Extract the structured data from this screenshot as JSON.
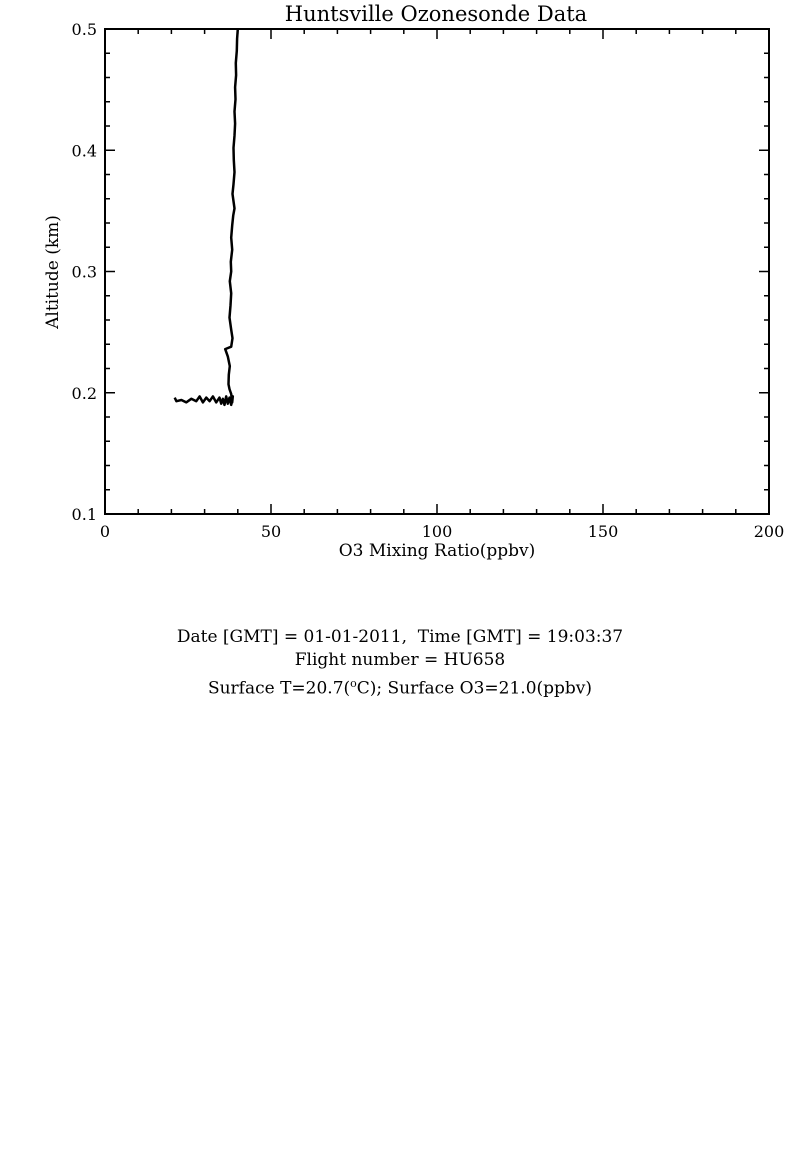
{
  "chart_data": {
    "type": "line",
    "title": "Huntsville Ozonesonde Data",
    "xlabel": "O3 Mixing Ratio(ppbv)",
    "ylabel": "Altitude (km)",
    "xlim": [
      0,
      200
    ],
    "ylim": [
      0.1,
      0.5
    ],
    "x_ticks": [
      "0",
      "50",
      "100",
      "150",
      "200"
    ],
    "y_ticks": [
      "0.1",
      "0.2",
      "0.3",
      "0.4",
      "0.5"
    ],
    "grid": false,
    "series": [
      {
        "color": "#000000",
        "points": [
          [
            21.0,
            0.196
          ],
          [
            21.5,
            0.193
          ],
          [
            23.0,
            0.194
          ],
          [
            24.5,
            0.192
          ],
          [
            26.0,
            0.195
          ],
          [
            27.5,
            0.193
          ],
          [
            28.5,
            0.197
          ],
          [
            29.5,
            0.192
          ],
          [
            30.5,
            0.196
          ],
          [
            31.5,
            0.193
          ],
          [
            32.5,
            0.197
          ],
          [
            33.5,
            0.192
          ],
          [
            34.5,
            0.196
          ],
          [
            35.0,
            0.191
          ],
          [
            35.5,
            0.195
          ],
          [
            36.0,
            0.19
          ],
          [
            36.5,
            0.197
          ],
          [
            37.0,
            0.191
          ],
          [
            37.5,
            0.196
          ],
          [
            38.0,
            0.19
          ],
          [
            38.5,
            0.197
          ],
          [
            38.3,
            0.192
          ],
          [
            38.0,
            0.199
          ],
          [
            37.5,
            0.203
          ],
          [
            37.2,
            0.207
          ],
          [
            37.3,
            0.215
          ],
          [
            37.6,
            0.222
          ],
          [
            37.0,
            0.23
          ],
          [
            36.2,
            0.236
          ],
          [
            38.0,
            0.238
          ],
          [
            38.4,
            0.245
          ],
          [
            38.0,
            0.252
          ],
          [
            37.5,
            0.262
          ],
          [
            37.8,
            0.272
          ],
          [
            38.0,
            0.282
          ],
          [
            37.6,
            0.292
          ],
          [
            38.0,
            0.3
          ],
          [
            37.9,
            0.308
          ],
          [
            38.3,
            0.318
          ],
          [
            38.0,
            0.328
          ],
          [
            38.3,
            0.338
          ],
          [
            38.6,
            0.346
          ],
          [
            39.0,
            0.352
          ],
          [
            38.7,
            0.358
          ],
          [
            38.4,
            0.364
          ],
          [
            38.7,
            0.372
          ],
          [
            39.0,
            0.382
          ],
          [
            38.8,
            0.392
          ],
          [
            38.7,
            0.402
          ],
          [
            39.0,
            0.412
          ],
          [
            39.2,
            0.422
          ],
          [
            39.0,
            0.432
          ],
          [
            39.3,
            0.442
          ],
          [
            39.2,
            0.452
          ],
          [
            39.5,
            0.462
          ],
          [
            39.4,
            0.472
          ],
          [
            39.7,
            0.482
          ],
          [
            39.8,
            0.492
          ],
          [
            40.0,
            0.5
          ]
        ]
      }
    ]
  },
  "info": {
    "line1": "Date [GMT] = 01-01-2011,  Time [GMT] = 19:03:37",
    "line2": "Flight number = HU658",
    "line3_prefix": "Surface T=20.7(",
    "line3_sup": "o",
    "line3_suffix": "C); Surface O3=21.0(ppbv)"
  }
}
